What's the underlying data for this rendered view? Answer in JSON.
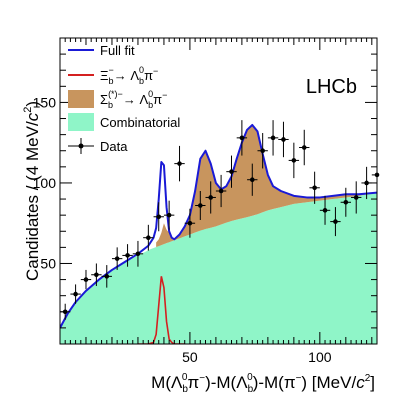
{
  "colors": {
    "full_fit": "#1a1ad6",
    "xib_signal": "#d42020",
    "sigma_b": "#c8955e",
    "combinatorial": "#8ff5c8",
    "data": "#000000"
  },
  "chart_data": {
    "type": "line",
    "experiment_label": "LHCb",
    "xlabel_parts": [
      "M(Λ",
      "b",
      "0",
      "π",
      "−",
      ")-M(Λ",
      "b",
      "0",
      ")-M(π",
      "−",
      ") [MeV/",
      "c",
      "2",
      "]"
    ],
    "ylabel_parts": [
      "Candidates / (4 MeV/",
      "c",
      "2",
      ")"
    ],
    "xlim": [
      0,
      122
    ],
    "ylim": [
      0,
      190
    ],
    "xticks": [
      50,
      100
    ],
    "yticks": [
      50,
      100,
      150
    ],
    "legend": [
      {
        "name": "Full fit",
        "style": "line",
        "color_key": "full_fit"
      },
      {
        "name": "Ξb− → Λb0π−",
        "style": "line",
        "color_key": "xib_signal",
        "parts": [
          "Ξ",
          "b",
          "−",
          "→ Λ",
          "b",
          "0",
          "π",
          "−"
        ]
      },
      {
        "name": "Σb(*)− → Λb0π−",
        "style": "fill",
        "color_key": "sigma_b",
        "parts": [
          "Σ",
          "b",
          "(*)−",
          "→ Λ",
          "b",
          "0",
          "π",
          "−"
        ]
      },
      {
        "name": "Combinatorial",
        "style": "fill",
        "color_key": "combinatorial"
      },
      {
        "name": "Data",
        "style": "marker",
        "color_key": "data"
      }
    ],
    "series": [
      {
        "name": "Data",
        "x": [
          2,
          6,
          10,
          14,
          18,
          22,
          26,
          30,
          34,
          38,
          42,
          46,
          50,
          54,
          58,
          62,
          66,
          70,
          74,
          78,
          82,
          86,
          90,
          94,
          98,
          102,
          106,
          110,
          114,
          118,
          122
        ],
        "y": [
          20,
          31,
          40,
          43,
          42,
          53,
          55,
          56,
          66,
          79,
          80,
          112,
          75,
          86,
          91,
          95,
          107,
          128,
          102,
          120,
          128,
          127,
          114,
          122,
          97,
          83,
          76,
          88,
          91,
          100,
          105
        ],
        "yerr": [
          5,
          6,
          6,
          7,
          7,
          7,
          7,
          8,
          8,
          9,
          9,
          11,
          9,
          9,
          10,
          10,
          10,
          11,
          10,
          11,
          11,
          11,
          11,
          11,
          10,
          9,
          9,
          9,
          10,
          10,
          10
        ]
      },
      {
        "name": "Combinatorial",
        "x": [
          0,
          3,
          6,
          10,
          15,
          20,
          25,
          30,
          35,
          40,
          45,
          50,
          55,
          60,
          65,
          70,
          75,
          80,
          85,
          90,
          95,
          100,
          105,
          110,
          115,
          122
        ],
        "y": [
          10,
          19,
          26,
          33,
          40,
          46,
          51,
          55,
          59,
          62,
          65,
          68,
          71,
          73,
          76,
          78,
          80,
          83,
          85,
          87,
          88,
          89,
          90,
          91,
          92,
          94
        ]
      },
      {
        "name": "Full fit",
        "x": [
          0,
          3,
          6,
          10,
          15,
          20,
          25,
          30,
          34,
          36,
          37,
          38,
          39,
          40,
          41,
          42,
          43,
          44,
          46,
          48,
          50,
          52,
          54,
          56,
          58,
          60,
          62,
          64,
          66,
          68,
          70,
          72,
          74,
          76,
          78,
          80,
          82,
          85,
          90,
          95,
          100,
          105,
          110,
          115,
          122
        ],
        "y": [
          10,
          19,
          26,
          33,
          40,
          46,
          51,
          56,
          61,
          66,
          72,
          90,
          113,
          111,
          85,
          70,
          66,
          65,
          68,
          73,
          80,
          95,
          115,
          120,
          112,
          100,
          96,
          98,
          104,
          115,
          125,
          133,
          136,
          132,
          118,
          105,
          98,
          95,
          92,
          91,
          91,
          92,
          93,
          93,
          94
        ]
      },
      {
        "name": "Ξb− → Λb0π−",
        "x": [
          30,
          34,
          36,
          37,
          38,
          39,
          40,
          41,
          42,
          43,
          44,
          48
        ],
        "y": [
          0,
          0,
          1,
          6,
          24,
          42,
          35,
          14,
          3,
          1,
          0,
          0
        ]
      },
      {
        "name": "Σb(*)− → Λb0π−",
        "x": [
          37,
          38,
          39,
          40,
          41,
          42,
          43,
          44,
          46,
          48,
          50,
          52,
          54,
          56,
          58,
          60,
          62,
          64,
          66,
          68,
          70,
          72,
          74,
          76,
          78,
          80,
          82,
          85,
          90,
          95,
          100,
          105,
          110,
          115,
          122
        ],
        "y": [
          63,
          65,
          69,
          75,
          71,
          69,
          66,
          65,
          68,
          73,
          80,
          95,
          115,
          120,
          112,
          100,
          96,
          98,
          104,
          115,
          125,
          133,
          136,
          132,
          118,
          105,
          98,
          95,
          92,
          91,
          91,
          92,
          93,
          93,
          94
        ]
      }
    ]
  }
}
